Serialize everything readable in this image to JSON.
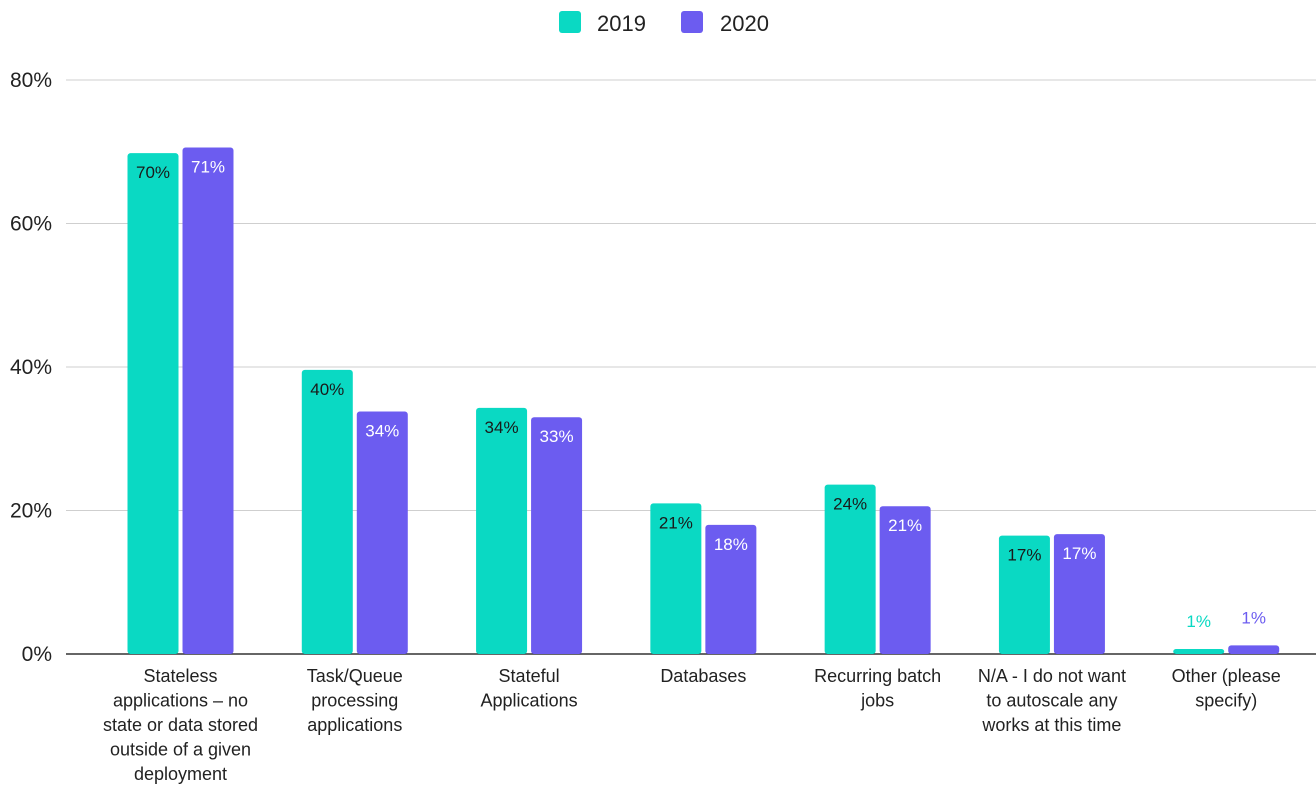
{
  "chart_data": {
    "type": "bar",
    "title": "",
    "xlabel": "",
    "ylabel": "",
    "ylim": [
      0,
      80
    ],
    "yticks": [
      0,
      20,
      40,
      60,
      80
    ],
    "ytick_labels": [
      "0%",
      "20%",
      "40%",
      "60%",
      "80%"
    ],
    "grid": true,
    "legend_position": "top-center",
    "categories": [
      "Stateless applications – no state or data stored outside of a given deployment",
      "Task/Queue processing applications",
      "Stateful Applications",
      "Databases",
      "Recurring batch jobs",
      "N/A - I do not want to autoscale any works at this time",
      "Other (please specify)"
    ],
    "category_lines": [
      [
        "Stateless",
        "applications – no",
        "state or data stored",
        "outside of a given",
        "deployment"
      ],
      [
        "Task/Queue",
        "processing",
        "applications"
      ],
      [
        "Stateful",
        "Applications"
      ],
      [
        "Databases"
      ],
      [
        "Recurring batch",
        "jobs"
      ],
      [
        "N/A - I do not want",
        "to autoscale any",
        "works at this time"
      ],
      [
        "Other (please",
        "specify)"
      ]
    ],
    "series": [
      {
        "name": "2019",
        "color": "#0ad9c3",
        "values": [
          69.8,
          39.6,
          34.3,
          21.0,
          23.6,
          16.5,
          0.7
        ],
        "labels": [
          "70%",
          "40%",
          "34%",
          "21%",
          "24%",
          "17%",
          "1%"
        ]
      },
      {
        "name": "2020",
        "color": "#6c5cf0",
        "values": [
          70.6,
          33.8,
          33.0,
          18.0,
          20.6,
          16.7,
          1.2
        ],
        "labels": [
          "71%",
          "34%",
          "33%",
          "18%",
          "21%",
          "17%",
          "1%"
        ]
      }
    ]
  }
}
